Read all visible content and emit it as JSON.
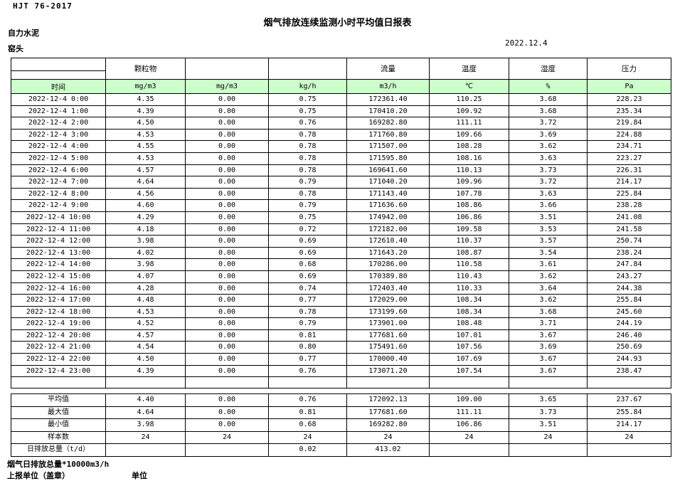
{
  "page": {
    "doc_code": "HJT 76-2017",
    "title": "烟气排放连续监测小时平均值日报表",
    "company": "自力水泥",
    "location": "窑头",
    "date": "2022.12.4"
  },
  "colors": {
    "header_row_bg": "#ccffcc",
    "border": "#000000"
  },
  "table": {
    "group_headers": [
      "",
      "颗粒物",
      "",
      "",
      "流量",
      "温度",
      "湿度",
      "压力"
    ],
    "unit_row": [
      "时间",
      "mg/m3",
      "mg/m3",
      "kg/h",
      "m3/h",
      "℃",
      "%",
      "Pa"
    ],
    "rows": [
      [
        "2022-12-4 0:00",
        "4.35",
        "0.00",
        "0.75",
        "172361.40",
        "110.25",
        "3.68",
        "228.23"
      ],
      [
        "2022-12-4 1:00",
        "4.39",
        "0.00",
        "0.75",
        "170410.20",
        "109.92",
        "3.68",
        "235.34"
      ],
      [
        "2022-12-4 2:00",
        "4.50",
        "0.00",
        "0.76",
        "169282.80",
        "111.11",
        "3.72",
        "219.84"
      ],
      [
        "2022-12-4 3:00",
        "4.53",
        "0.00",
        "0.78",
        "171760.80",
        "109.66",
        "3.69",
        "224.88"
      ],
      [
        "2022-12-4 4:00",
        "4.55",
        "0.00",
        "0.78",
        "171507.00",
        "108.28",
        "3.62",
        "234.71"
      ],
      [
        "2022-12-4 5:00",
        "4.53",
        "0.00",
        "0.78",
        "171595.80",
        "108.16",
        "3.63",
        "223.27"
      ],
      [
        "2022-12-4 6:00",
        "4.57",
        "0.00",
        "0.78",
        "169641.60",
        "110.13",
        "3.73",
        "226.31"
      ],
      [
        "2022-12-4 7:00",
        "4.64",
        "0.00",
        "0.79",
        "171040.20",
        "109.96",
        "3.72",
        "214.17"
      ],
      [
        "2022-12-4 8:00",
        "4.56",
        "0.00",
        "0.78",
        "171143.40",
        "107.78",
        "3.63",
        "225.84"
      ],
      [
        "2022-12-4 9:00",
        "4.60",
        "0.00",
        "0.79",
        "171636.60",
        "108.86",
        "3.66",
        "238.28"
      ],
      [
        "2022-12-4 10:00",
        "4.29",
        "0.00",
        "0.75",
        "174942.00",
        "106.86",
        "3.51",
        "241.08"
      ],
      [
        "2022-12-4 11:00",
        "4.18",
        "0.00",
        "0.72",
        "172182.00",
        "109.58",
        "3.53",
        "241.58"
      ],
      [
        "2022-12-4 12:00",
        "3.98",
        "0.00",
        "0.69",
        "172610.40",
        "110.37",
        "3.57",
        "250.74"
      ],
      [
        "2022-12-4 13:00",
        "4.02",
        "0.00",
        "0.69",
        "171643.20",
        "108.87",
        "3.54",
        "238.24"
      ],
      [
        "2022-12-4 14:00",
        "3.98",
        "0.00",
        "0.68",
        "170286.00",
        "110.58",
        "3.61",
        "247.84"
      ],
      [
        "2022-12-4 15:00",
        "4.07",
        "0.00",
        "0.69",
        "170389.80",
        "110.43",
        "3.62",
        "243.27"
      ],
      [
        "2022-12-4 16:00",
        "4.28",
        "0.00",
        "0.74",
        "172403.40",
        "110.33",
        "3.64",
        "244.38"
      ],
      [
        "2022-12-4 17:00",
        "4.48",
        "0.00",
        "0.77",
        "172029.00",
        "108.34",
        "3.62",
        "255.84"
      ],
      [
        "2022-12-4 18:00",
        "4.53",
        "0.00",
        "0.78",
        "173199.60",
        "108.34",
        "3.68",
        "245.60"
      ],
      [
        "2022-12-4 19:00",
        "4.52",
        "0.00",
        "0.79",
        "173901.00",
        "108.48",
        "3.71",
        "244.19"
      ],
      [
        "2022-12-4 20:00",
        "4.57",
        "0.00",
        "0.81",
        "177681.60",
        "107.01",
        "3.67",
        "246.40"
      ],
      [
        "2022-12-4 21:00",
        "4.54",
        "0.00",
        "0.80",
        "175491.60",
        "107.56",
        "3.69",
        "250.69"
      ],
      [
        "2022-12-4 22:00",
        "4.50",
        "0.00",
        "0.77",
        "170000.40",
        "107.69",
        "3.67",
        "244.93"
      ],
      [
        "2022-12-4 23:00",
        "4.39",
        "0.00",
        "0.76",
        "173071.20",
        "107.54",
        "3.67",
        "238.47"
      ]
    ],
    "summary_rows": [
      [
        "平均值",
        "4.40",
        "0.00",
        "0.76",
        "172092.13",
        "109.00",
        "3.65",
        "237.67"
      ],
      [
        "最大值",
        "4.64",
        "0.00",
        "0.81",
        "177681.60",
        "111.11",
        "3.73",
        "255.84"
      ],
      [
        "最小值",
        "3.98",
        "0.00",
        "0.68",
        "169282.80",
        "106.86",
        "3.51",
        "214.17"
      ],
      [
        "样本数",
        "24",
        "24",
        "24",
        "24",
        "24",
        "24",
        "24"
      ],
      [
        "日排放总量（t/d）",
        "",
        "",
        "0.02",
        "413.02",
        "",
        "",
        ""
      ]
    ]
  },
  "footer": {
    "note": "烟气日排放总量*10000m3/h",
    "report_unit_label": "上报单位（盖章）",
    "unit_label": "单位"
  }
}
